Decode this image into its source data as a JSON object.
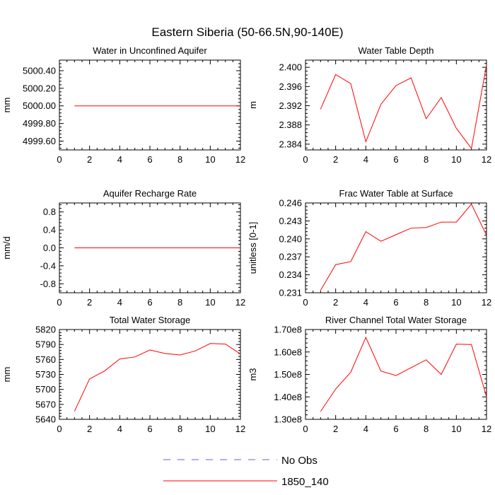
{
  "figure": {
    "title": "Eastern Siberia (50-66.5N,90-140E)"
  },
  "colors": {
    "model": "#ff0000",
    "obs": "#6666cc",
    "axes": "#000000"
  },
  "legend": {
    "placement": "bottom-center",
    "entries": [
      {
        "label": "No Obs",
        "style": "dashed",
        "color": "#6666cc"
      },
      {
        "label": "1850_140",
        "style": "solid",
        "color": "#ff0000"
      }
    ]
  },
  "chart_data": [
    {
      "type": "line",
      "title": "Water in Unconfined Aquifer",
      "ylabel": "mm",
      "xlim": [
        0,
        12
      ],
      "ylim": [
        4999.5,
        5000.52
      ],
      "xticks": [
        0,
        2,
        4,
        6,
        8,
        10,
        12
      ],
      "yticks": [
        4999.6,
        4999.8,
        5000.0,
        5000.2,
        5000.4
      ],
      "ytick_labels": [
        "4999.60",
        "4999.80",
        "5000.00",
        "5000.20",
        "5000.40"
      ],
      "series": [
        {
          "name": "1850_140",
          "x": [
            1,
            2,
            3,
            4,
            5,
            6,
            7,
            8,
            9,
            10,
            11,
            12
          ],
          "values": [
            5000,
            5000,
            5000,
            5000,
            5000,
            5000,
            5000,
            5000,
            5000,
            5000,
            5000,
            5000
          ]
        }
      ]
    },
    {
      "type": "line",
      "title": "Water Table Depth",
      "ylabel": "m",
      "xlim": [
        0,
        12
      ],
      "ylim": [
        2.3828,
        2.4015
      ],
      "xticks": [
        0,
        2,
        4,
        6,
        8,
        10,
        12
      ],
      "yticks": [
        2.384,
        2.388,
        2.392,
        2.396,
        2.4
      ],
      "ytick_labels": [
        "2.384",
        "2.388",
        "2.392",
        "2.396",
        "2.400"
      ],
      "series": [
        {
          "name": "1850_140",
          "x": [
            1,
            2,
            3,
            4,
            5,
            6,
            7,
            8,
            9,
            10,
            11,
            12
          ],
          "values": [
            2.3913,
            2.3985,
            2.3966,
            2.3845,
            2.3923,
            2.3962,
            2.3978,
            2.3893,
            2.3937,
            2.3873,
            2.3831,
            2.4005
          ]
        }
      ]
    },
    {
      "type": "line",
      "title": "Aquifer Recharge Rate",
      "ylabel": "mm/d",
      "xlim": [
        0,
        12
      ],
      "ylim": [
        -1.0,
        1.0
      ],
      "xticks": [
        0,
        2,
        4,
        6,
        8,
        10,
        12
      ],
      "yticks": [
        -0.8,
        -0.4,
        0.0,
        0.4,
        0.8
      ],
      "ytick_labels": [
        "-0.8",
        "-0.4",
        "0.0",
        "0.4",
        "0.8"
      ],
      "series": [
        {
          "name": "1850_140",
          "x": [
            1,
            2,
            3,
            4,
            5,
            6,
            7,
            8,
            9,
            10,
            11,
            12
          ],
          "values": [
            0,
            0,
            0,
            0,
            0,
            0,
            0,
            0,
            0,
            0,
            0,
            0
          ]
        }
      ]
    },
    {
      "type": "line",
      "title": "Frac Water Table at Surface",
      "ylabel": "unitless [0-1]",
      "xlim": [
        0,
        12
      ],
      "ylim": [
        0.231,
        0.246
      ],
      "xticks": [
        0,
        2,
        4,
        6,
        8,
        10,
        12
      ],
      "yticks": [
        0.231,
        0.234,
        0.237,
        0.24,
        0.243,
        0.246
      ],
      "ytick_labels": [
        "0.231",
        "0.234",
        "0.237",
        "0.240",
        "0.243",
        "0.246"
      ],
      "series": [
        {
          "name": "1850_140",
          "x": [
            1,
            2,
            3,
            4,
            5,
            6,
            7,
            8,
            9,
            10,
            11,
            12
          ],
          "values": [
            0.2314,
            0.2357,
            0.2362,
            0.2412,
            0.2396,
            0.2407,
            0.2418,
            0.2419,
            0.2428,
            0.2428,
            0.2458,
            0.2406
          ]
        }
      ]
    },
    {
      "type": "line",
      "title": "Total Water Storage",
      "ylabel": "mm",
      "xlim": [
        0,
        12
      ],
      "ylim": [
        5640,
        5820
      ],
      "xticks": [
        0,
        2,
        4,
        6,
        8,
        10,
        12
      ],
      "yticks": [
        5640,
        5670,
        5700,
        5730,
        5760,
        5790,
        5820
      ],
      "ytick_labels": [
        "5640",
        "5670",
        "5700",
        "5730",
        "5760",
        "5790",
        "5820"
      ],
      "series": [
        {
          "name": "1850_140",
          "x": [
            1,
            2,
            3,
            4,
            5,
            6,
            7,
            8,
            9,
            10,
            11,
            12
          ],
          "values": [
            5656,
            5721,
            5737,
            5761,
            5765,
            5779,
            5772,
            5769,
            5777,
            5792,
            5791,
            5771
          ]
        }
      ]
    },
    {
      "type": "line",
      "title": "River Channel Total Water Storage",
      "ylabel": "m3",
      "xlim": [
        0,
        12
      ],
      "ylim": [
        130000000,
        170000000
      ],
      "xticks": [
        0,
        2,
        4,
        6,
        8,
        10,
        12
      ],
      "yticks": [
        130000000,
        140000000,
        150000000,
        160000000,
        170000000
      ],
      "ytick_labels": [
        "1.30e8",
        "1.40e8",
        "1.50e8",
        "1.60e8",
        "1.70e8"
      ],
      "series": [
        {
          "name": "1850_140",
          "x": [
            1,
            2,
            3,
            4,
            5,
            6,
            7,
            8,
            9,
            10,
            11,
            12
          ],
          "values": [
            133500000,
            143500000,
            151000000,
            166500000,
            151500000,
            149500000,
            153000000,
            156500000,
            150000000,
            163500000,
            163300000,
            140000000
          ]
        }
      ]
    }
  ]
}
